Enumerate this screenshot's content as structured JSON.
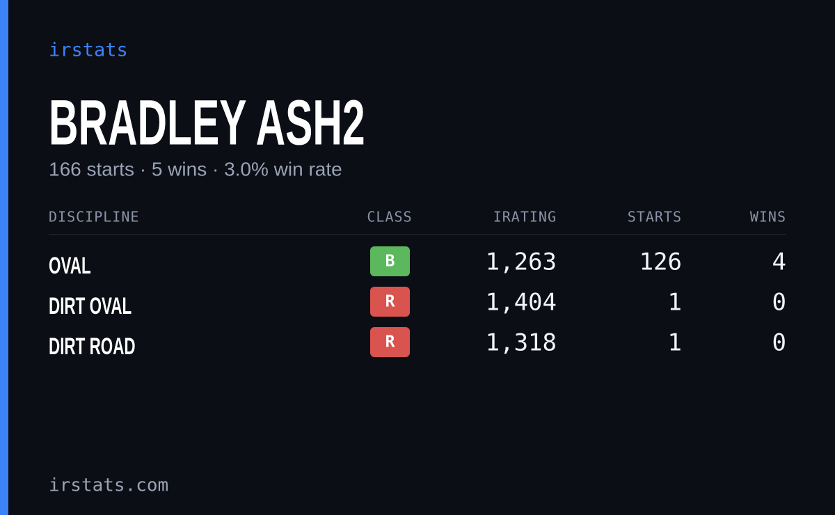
{
  "header": {
    "brand": "irstats",
    "name": "BRADLEY ASH2",
    "subtitle": "166 starts · 5 wins · 3.0% win rate"
  },
  "table": {
    "columns": [
      "DISCIPLINE",
      "CLASS",
      "IRATING",
      "STARTS",
      "WINS"
    ],
    "rows": [
      [
        "OVAL",
        "B",
        "1,263",
        "126",
        "4"
      ],
      [
        "DIRT OVAL",
        "R",
        "1,404",
        "1",
        "0"
      ],
      [
        "DIRT ROAD",
        "R",
        "1,318",
        "1",
        "0"
      ]
    ],
    "class_colors": {
      "B": "#5cb85c",
      "R": "#d9534f"
    }
  },
  "footer": {
    "site": "irstats.com"
  }
}
